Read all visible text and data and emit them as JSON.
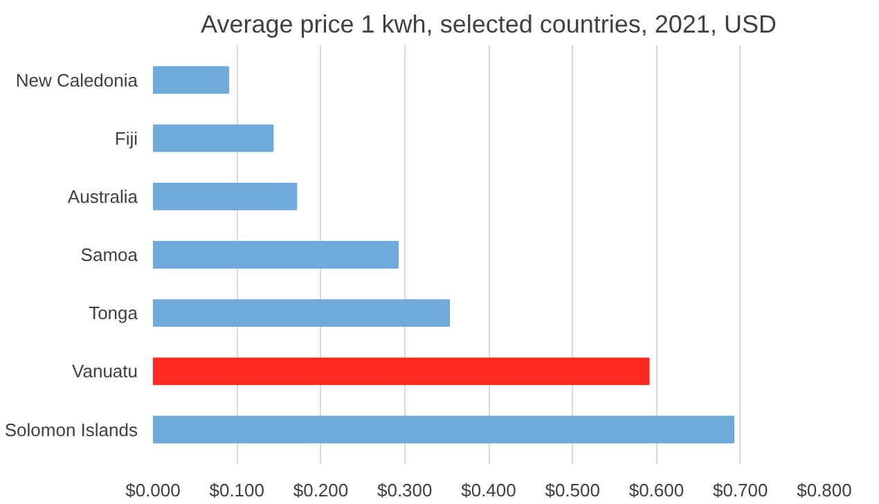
{
  "chart_data": {
    "type": "bar",
    "orientation": "horizontal",
    "title": "Average price 1 kwh, selected countries, 2021, USD",
    "categories": [
      "New Caledonia",
      "Fiji",
      "Australia",
      "Samoa",
      "Tonga",
      "Vanuatu",
      "Solomon Islands"
    ],
    "values": [
      0.09,
      0.143,
      0.171,
      0.292,
      0.353,
      0.591,
      0.692
    ],
    "colors": [
      "#6faadb",
      "#6faadb",
      "#6faadb",
      "#6faadb",
      "#6faadb",
      "#ff2a1f",
      "#6faadb"
    ],
    "xlim": [
      0,
      0.8
    ],
    "xticks": [
      {
        "value": 0,
        "label": "$0.000"
      },
      {
        "value": 0.1,
        "label": "$0.100"
      },
      {
        "value": 0.2,
        "label": "$0.200"
      },
      {
        "value": 0.3,
        "label": "$0.300"
      },
      {
        "value": 0.4,
        "label": "$0.400"
      },
      {
        "value": 0.5,
        "label": "$0.500"
      },
      {
        "value": 0.6,
        "label": "$0.600"
      },
      {
        "value": 0.7,
        "label": "$0.700"
      },
      {
        "value": 0.8,
        "label": "$0.800"
      }
    ],
    "grid": "x"
  }
}
